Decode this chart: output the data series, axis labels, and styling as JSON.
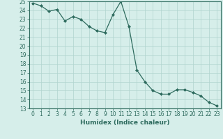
{
  "x": [
    0,
    1,
    2,
    3,
    4,
    5,
    6,
    7,
    8,
    9,
    10,
    11,
    12,
    13,
    14,
    15,
    16,
    17,
    18,
    19,
    20,
    21,
    22,
    23
  ],
  "y": [
    24.8,
    24.5,
    23.9,
    24.1,
    22.8,
    23.3,
    23.0,
    22.2,
    21.7,
    21.5,
    23.5,
    25.0,
    22.2,
    17.3,
    16.0,
    15.0,
    14.6,
    14.6,
    15.1,
    15.1,
    14.8,
    14.4,
    13.7,
    13.3
  ],
  "xlabel": "Humidex (Indice chaleur)",
  "xlim": [
    -0.5,
    23.5
  ],
  "ylim": [
    13,
    25
  ],
  "yticks": [
    13,
    14,
    15,
    16,
    17,
    18,
    19,
    20,
    21,
    22,
    23,
    24,
    25
  ],
  "xticks": [
    0,
    1,
    2,
    3,
    4,
    5,
    6,
    7,
    8,
    9,
    10,
    11,
    12,
    13,
    14,
    15,
    16,
    17,
    18,
    19,
    20,
    21,
    22,
    23
  ],
  "line_color": "#2e6b5e",
  "marker": "D",
  "marker_size": 2.0,
  "bg_color": "#d6eeea",
  "grid_color": "#b0d4ce",
  "label_fontsize": 6.5,
  "tick_fontsize": 5.5
}
